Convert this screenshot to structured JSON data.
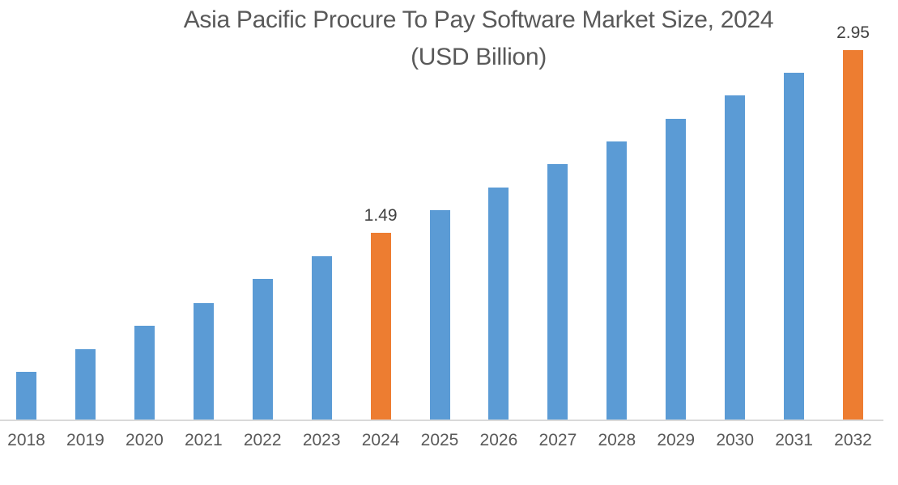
{
  "title": {
    "line1": "Asia Pacific Procure To Pay Software Market Size, 2024",
    "line2": "(USD Billion)"
  },
  "chart_data": {
    "type": "bar",
    "title": "Asia Pacific Procure To Pay Software Market Size, 2024 (USD Billion)",
    "value_unit": "USD Billion",
    "xlabel": "",
    "ylabel": "",
    "categories": [
      "2018",
      "2019",
      "2020",
      "2021",
      "2022",
      "2023",
      "2024",
      "2025",
      "2026",
      "2027",
      "2028",
      "2029",
      "2030",
      "2031",
      "2032"
    ],
    "values": [
      0.38,
      0.56,
      0.75,
      0.93,
      1.12,
      1.3,
      1.49,
      1.67,
      1.85,
      2.04,
      2.22,
      2.4,
      2.59,
      2.77,
      2.95
    ],
    "data_labels": {
      "2024": "1.49",
      "2032": "2.95"
    },
    "highlighted_categories": [
      "2024",
      "2032"
    ],
    "ylim": [
      0,
      3.0
    ],
    "grid": false,
    "legend": false,
    "colors": {
      "bar_default": "#5B9BD5",
      "bar_highlight": "#ED7D31",
      "axis_line": "#D9D9D9",
      "title_text": "#595959",
      "tick_text": "#595959",
      "data_label_text": "#404040"
    }
  }
}
